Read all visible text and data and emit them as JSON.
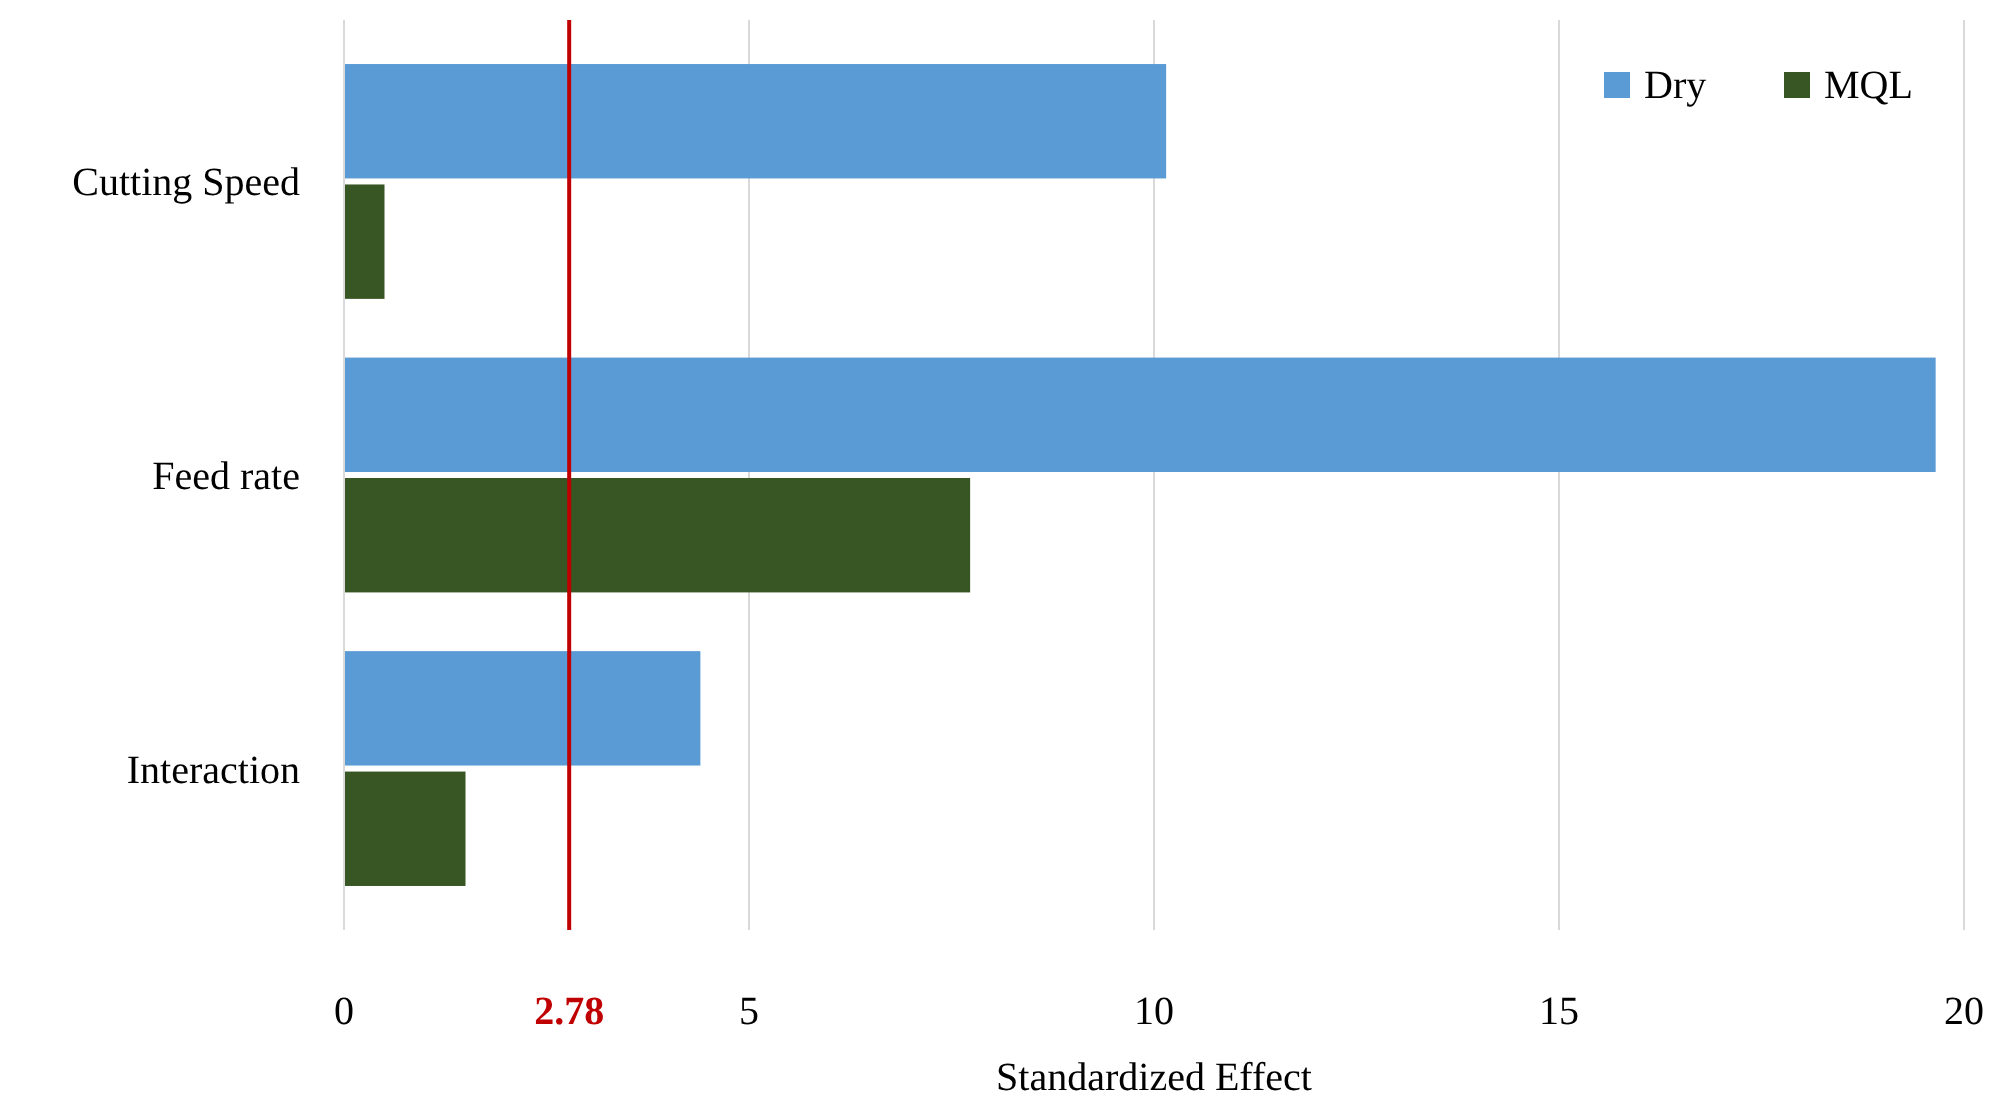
{
  "chart_data": {
    "type": "bar",
    "orientation": "horizontal",
    "xlabel": "Standardized Effect",
    "categories": [
      "Cutting Speed",
      "Feed rate",
      "Interaction"
    ],
    "series": [
      {
        "name": "Dry",
        "color": "#5b9bd5",
        "values": [
          10.15,
          19.65,
          4.4
        ]
      },
      {
        "name": "MQL",
        "color": "#375623",
        "values": [
          0.5,
          7.73,
          1.5
        ]
      }
    ],
    "xlim": [
      0,
      20
    ],
    "xticks": [
      0,
      5,
      10,
      15,
      20
    ],
    "grid": "x",
    "legend": "top right",
    "ref_lines": [
      {
        "axis": "x",
        "value": 2.78,
        "label": "2.78",
        "color": "#c00000"
      }
    ]
  }
}
